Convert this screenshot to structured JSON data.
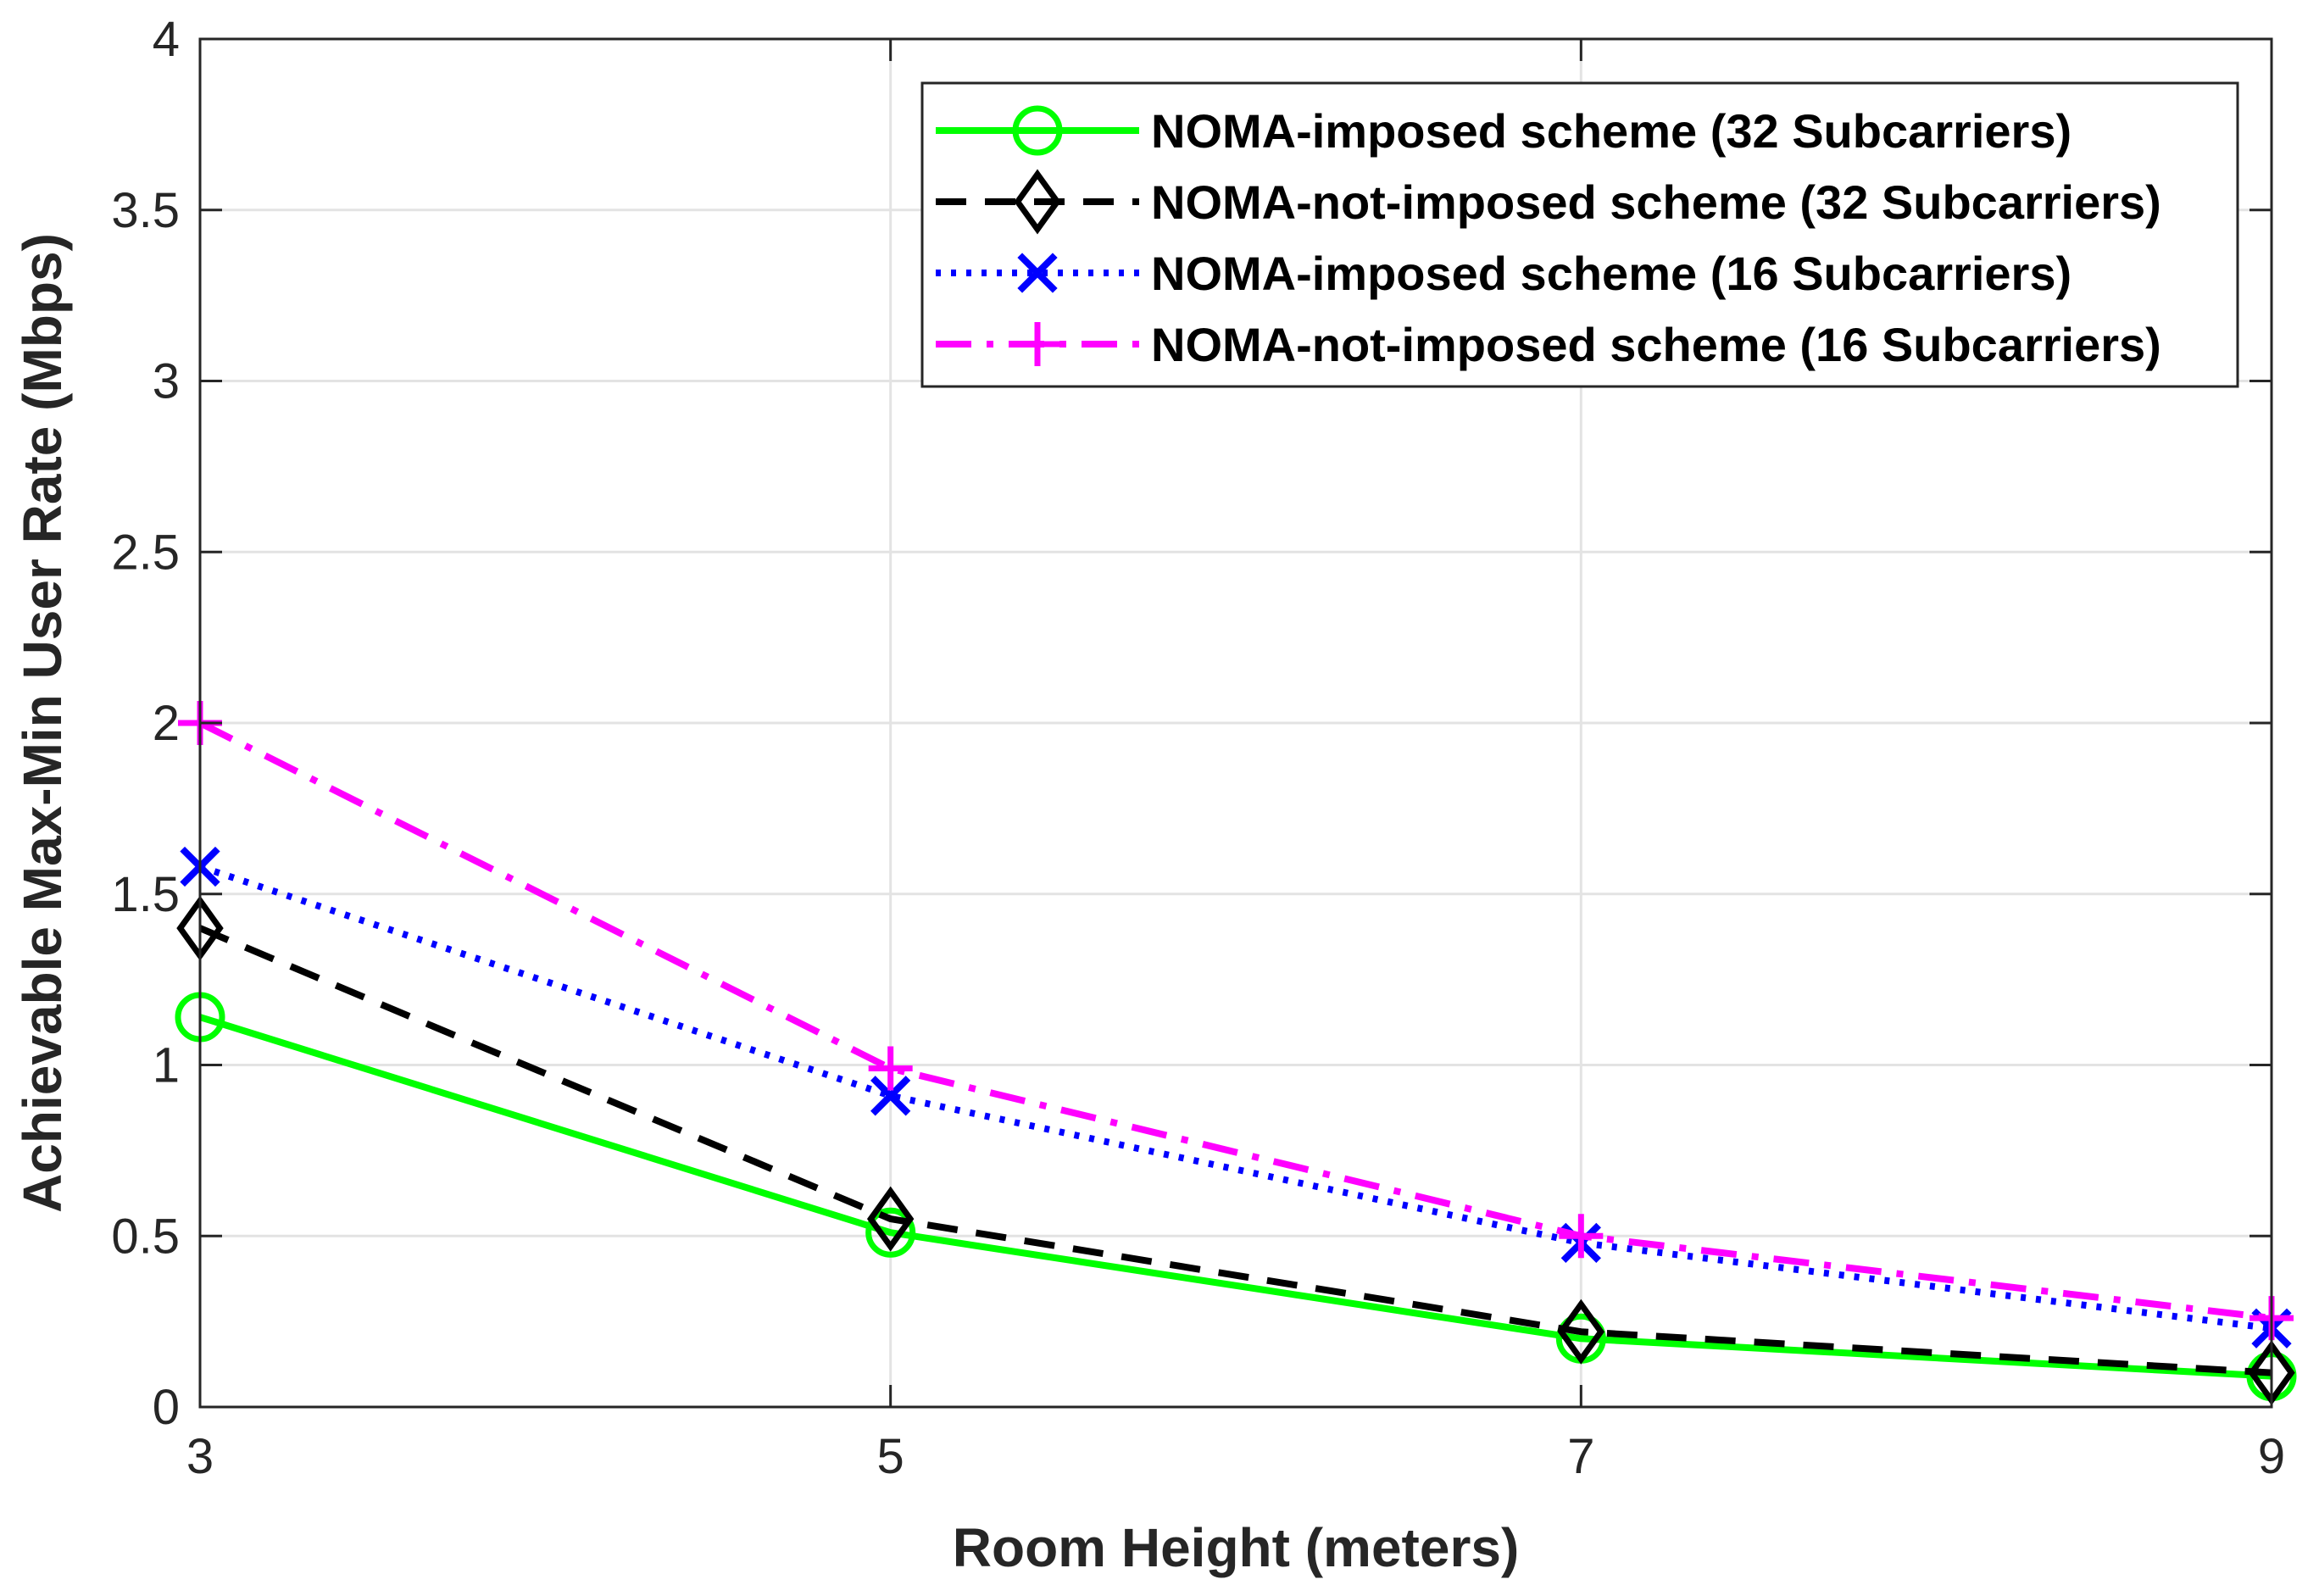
{
  "chart_data": {
    "type": "line",
    "title": "",
    "xlabel": "Room Height (meters)",
    "ylabel": "Achievable Max-Min User Rate (Mbps)",
    "x": [
      3,
      5,
      7,
      9
    ],
    "xlim": [
      3,
      9
    ],
    "ylim": [
      0,
      4
    ],
    "xticks": [
      3,
      5,
      7,
      9
    ],
    "xtick_labels": [
      "3",
      "5",
      "7",
      "9"
    ],
    "yticks": [
      0,
      0.5,
      1,
      1.5,
      2,
      2.5,
      3,
      3.5,
      4
    ],
    "ytick_labels": [
      "0",
      "0.5",
      "1",
      "1.5",
      "2",
      "2.5",
      "3",
      "3.5",
      "4"
    ],
    "grid": true,
    "legend_position": "top-right",
    "series": [
      {
        "name": "NOMA-imposed scheme (32 Subcarriers)",
        "values": [
          1.14,
          0.51,
          0.2,
          0.09
        ],
        "color": "#00ff00",
        "line_style": "solid",
        "marker": "circle"
      },
      {
        "name": "NOMA-not-imposed scheme (32 Subcarriers)",
        "values": [
          1.4,
          0.55,
          0.22,
          0.1
        ],
        "color": "#000000",
        "line_style": "dashed",
        "marker": "diamond"
      },
      {
        "name": "NOMA-imposed scheme (16 Subcarriers)",
        "values": [
          1.58,
          0.91,
          0.48,
          0.23
        ],
        "color": "#0000ff",
        "line_style": "dotted",
        "marker": "x"
      },
      {
        "name": "NOMA-not-imposed scheme (16 Subcarriers)",
        "values": [
          2.0,
          0.99,
          0.5,
          0.26
        ],
        "color": "#ff00ff",
        "line_style": "dashdot",
        "marker": "plus"
      }
    ]
  }
}
